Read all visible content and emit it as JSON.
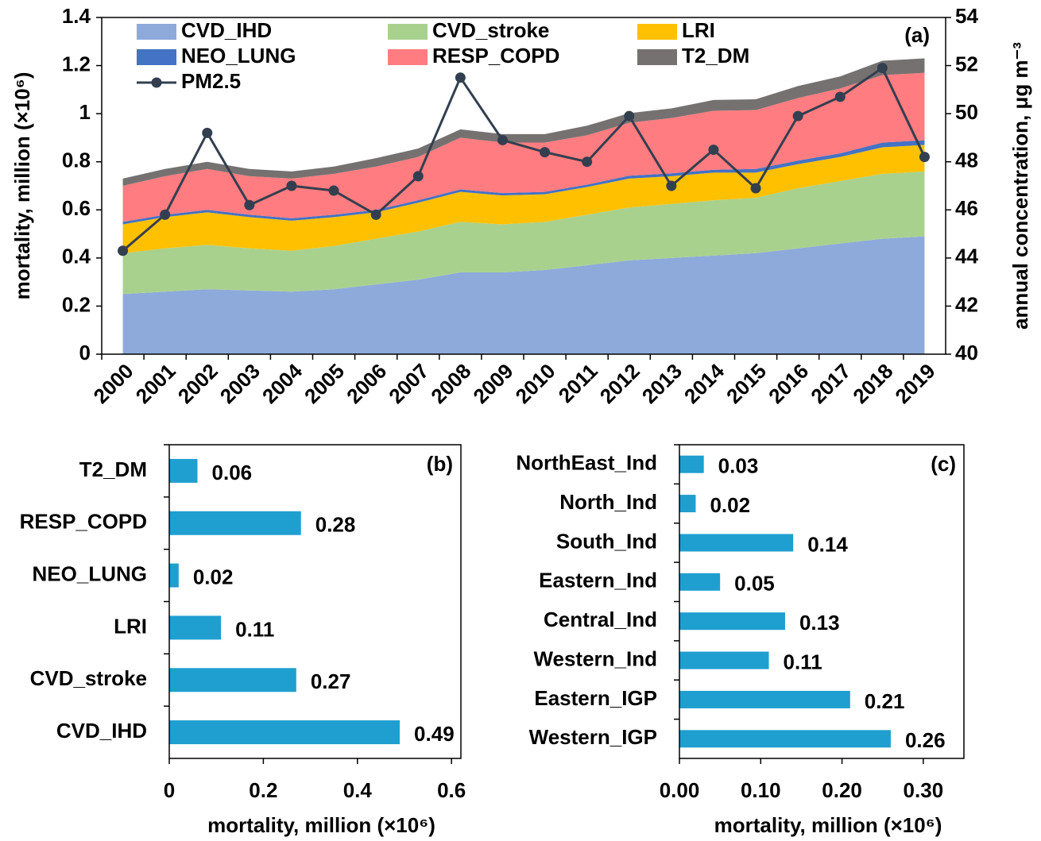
{
  "chart_data": [
    {
      "type": "area",
      "label": "(a)",
      "ylabel": "mortality, million (×10⁶)",
      "y2label": "annual concentration, μg m⁻³",
      "categories": [
        "2000",
        "2001",
        "2002",
        "2003",
        "2004",
        "2005",
        "2006",
        "2007",
        "2008",
        "2009",
        "2010",
        "2011",
        "2012",
        "2013",
        "2014",
        "2015",
        "2016",
        "2017",
        "2018",
        "2019"
      ],
      "series": [
        {
          "name": "CVD_IHD",
          "color": "#8eaadb",
          "values": [
            0.25,
            0.26,
            0.27,
            0.265,
            0.26,
            0.27,
            0.29,
            0.31,
            0.34,
            0.34,
            0.35,
            0.37,
            0.39,
            0.4,
            0.41,
            0.42,
            0.44,
            0.46,
            0.48,
            0.49
          ]
        },
        {
          "name": "CVD_stroke",
          "color": "#a9d18e",
          "values": [
            0.17,
            0.18,
            0.185,
            0.175,
            0.17,
            0.18,
            0.19,
            0.2,
            0.21,
            0.2,
            0.2,
            0.21,
            0.22,
            0.225,
            0.23,
            0.23,
            0.25,
            0.26,
            0.27,
            0.27
          ]
        },
        {
          "name": "LRI",
          "color": "#ffc000",
          "values": [
            0.12,
            0.13,
            0.135,
            0.13,
            0.125,
            0.12,
            0.11,
            0.12,
            0.125,
            0.12,
            0.115,
            0.115,
            0.12,
            0.115,
            0.115,
            0.105,
            0.1,
            0.1,
            0.11,
            0.11
          ]
        },
        {
          "name": "NEO_LUNG",
          "color": "#4472c4",
          "values": [
            0.01,
            0.01,
            0.01,
            0.01,
            0.01,
            0.01,
            0.01,
            0.01,
            0.01,
            0.01,
            0.01,
            0.01,
            0.012,
            0.012,
            0.012,
            0.015,
            0.015,
            0.015,
            0.02,
            0.02
          ]
        },
        {
          "name": "RESP_COPD",
          "color": "#ff7c80",
          "values": [
            0.15,
            0.16,
            0.17,
            0.16,
            0.165,
            0.17,
            0.18,
            0.18,
            0.215,
            0.21,
            0.205,
            0.205,
            0.22,
            0.23,
            0.245,
            0.245,
            0.26,
            0.27,
            0.28,
            0.28
          ]
        },
        {
          "name": "T2_DM",
          "color": "#767171",
          "values": [
            0.03,
            0.03,
            0.03,
            0.03,
            0.03,
            0.03,
            0.035,
            0.035,
            0.035,
            0.035,
            0.035,
            0.04,
            0.04,
            0.04,
            0.045,
            0.045,
            0.05,
            0.05,
            0.06,
            0.06
          ]
        },
        {
          "name": "PM2.5",
          "color": "#323f4f",
          "type": "line",
          "axis": "y2",
          "values": [
            44.3,
            45.8,
            49.2,
            46.2,
            47.0,
            46.8,
            45.8,
            47.4,
            51.5,
            48.9,
            48.4,
            48.0,
            49.9,
            47.0,
            48.5,
            46.9,
            49.9,
            50.7,
            51.9,
            48.2
          ]
        }
      ],
      "ylim": [
        0,
        1.4
      ],
      "yticks": [
        0,
        0.2,
        0.4,
        0.6,
        0.8,
        1,
        1.2,
        1.4
      ],
      "y2lim": [
        40,
        54
      ],
      "y2ticks": [
        40,
        42,
        44,
        46,
        48,
        50,
        52,
        54
      ]
    },
    {
      "type": "hbar",
      "label": "(b)",
      "xlabel": "mortality, million (×10⁶)",
      "color": "#1f9fd0",
      "categories": [
        "T2_DM",
        "RESP_COPD",
        "NEO_LUNG",
        "LRI",
        "CVD_stroke",
        "CVD_IHD"
      ],
      "values": [
        0.06,
        0.28,
        0.02,
        0.11,
        0.27,
        0.49
      ],
      "xlim": [
        0,
        0.62
      ],
      "xticks": [
        0,
        0.2,
        0.4,
        0.6
      ]
    },
    {
      "type": "hbar",
      "label": "(c)",
      "xlabel": "mortality, million (×10⁶)",
      "color": "#1f9fd0",
      "categories": [
        "NorthEast_Ind",
        "North_Ind",
        "South_Ind",
        "Eastern_Ind",
        "Central_Ind",
        "Western_Ind",
        "Eastern_IGP",
        "Western_IGP"
      ],
      "values": [
        0.03,
        0.02,
        0.14,
        0.05,
        0.13,
        0.11,
        0.21,
        0.26
      ],
      "xlim": [
        0,
        0.35
      ],
      "xticks": [
        {
          "value": 0,
          "label": "0.00"
        },
        {
          "value": 0.1,
          "label": "0.10"
        },
        {
          "value": 0.2,
          "label": "0.20"
        },
        {
          "value": 0.3,
          "label": "0.30"
        }
      ]
    }
  ]
}
